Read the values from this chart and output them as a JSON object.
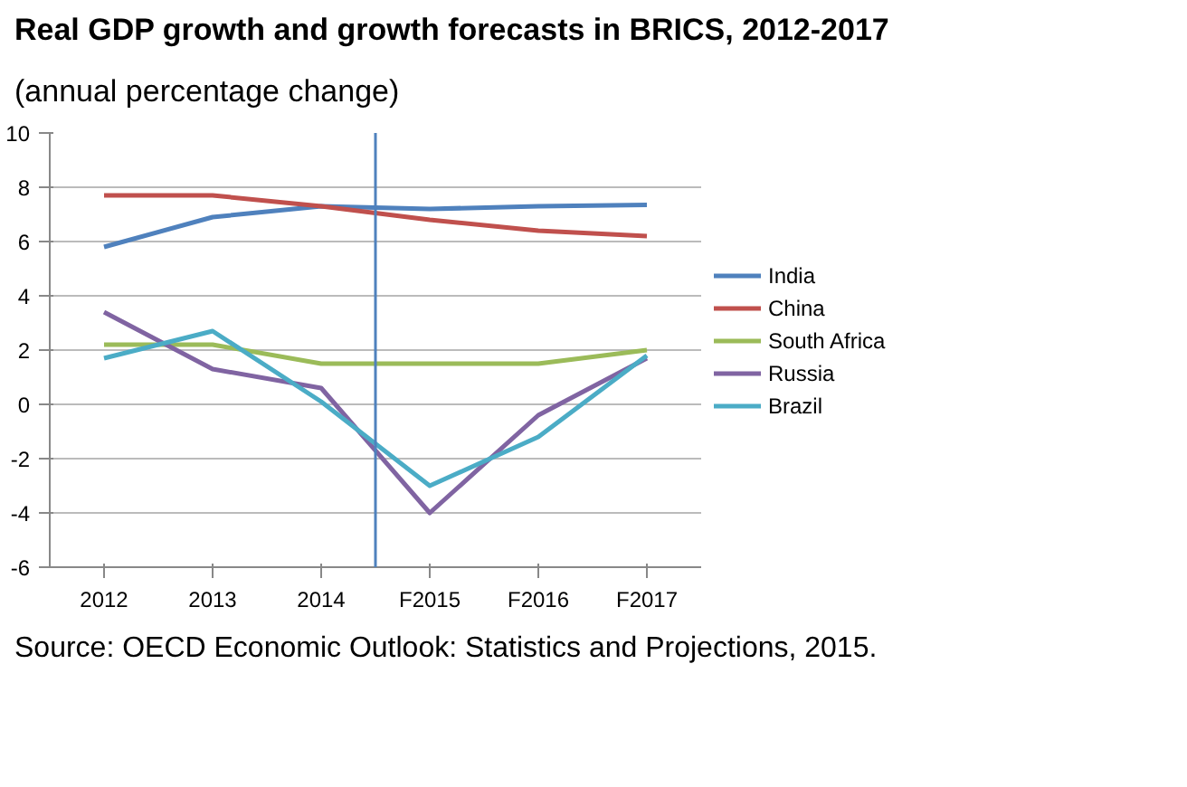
{
  "chart_data": {
    "type": "line",
    "title": "Real GDP growth and growth forecasts in BRICS, 2012-2017",
    "subtitle": "(annual percentage change)",
    "x": [
      2012,
      2013,
      2014,
      2015,
      2016,
      2017
    ],
    "series": [
      {
        "name": "India",
        "color": "#4f81bd",
        "values": [
          5.8,
          6.9,
          7.3,
          7.2,
          7.3,
          7.35
        ]
      },
      {
        "name": "China",
        "color": "#c0504d",
        "values": [
          7.7,
          7.7,
          7.3,
          6.8,
          6.4,
          6.2
        ]
      },
      {
        "name": "South Africa",
        "color": "#9bbb59",
        "values": [
          2.2,
          2.2,
          1.5,
          1.5,
          1.5,
          2.0
        ]
      },
      {
        "name": "Russia",
        "color": "#8064a2",
        "values": [
          3.4,
          1.3,
          0.6,
          -4.0,
          -0.4,
          1.7
        ]
      },
      {
        "name": "Brazil",
        "color": "#4bacc6",
        "values": [
          1.7,
          2.7,
          0.1,
          -3.0,
          -1.2,
          1.8
        ]
      }
    ],
    "xlim": [
      2011.5,
      2017.5
    ],
    "xticks": [
      2012,
      2013,
      2014,
      {
        "value": 2015,
        "label": "F2015"
      },
      {
        "value": 2016,
        "label": "F2016"
      },
      {
        "value": 2017,
        "label": "F2017"
      }
    ],
    "ylim": [
      -6,
      10
    ],
    "yticks": [
      -6,
      -4,
      -2,
      0,
      2,
      4,
      6,
      8,
      10
    ],
    "grid": "y",
    "legend": "right",
    "line_style": "solid",
    "ref_lines": [
      {
        "axis": "x",
        "value": 2014.5,
        "color": "#4f81bd"
      }
    ],
    "annotations": [
      "Source: OECD Economic Outlook: Statistics and Projections, 2015."
    ]
  }
}
